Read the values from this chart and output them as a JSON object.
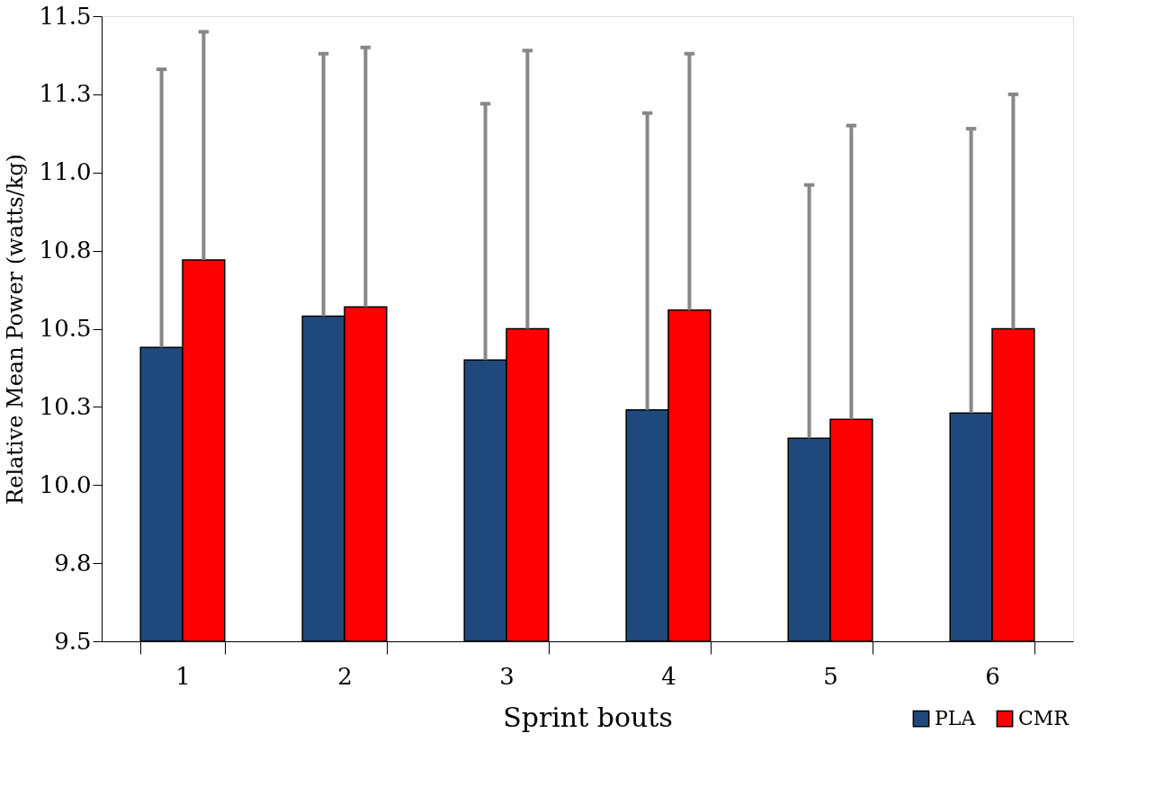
{
  "chart_data": {
    "type": "bar",
    "xlabel": "Sprint bouts",
    "ylabel": "Relative Mean Power (watts/kg)",
    "categories": [
      "1",
      "2",
      "3",
      "4",
      "5",
      "6"
    ],
    "series": [
      {
        "name": "PLA",
        "color": "#1f497d",
        "values": [
          10.44,
          10.54,
          10.4,
          10.24,
          10.15,
          10.23
        ],
        "errors": [
          [
            10.44,
            11.33
          ],
          [
            10.54,
            11.38
          ],
          [
            10.4,
            11.22
          ],
          [
            10.24,
            11.19
          ],
          [
            10.15,
            10.96
          ],
          [
            10.23,
            11.14
          ]
        ]
      },
      {
        "name": "CMR",
        "color": "#ff0000",
        "values": [
          10.72,
          10.57,
          10.5,
          10.56,
          10.21,
          10.5
        ],
        "errors": [
          [
            10.72,
            11.45
          ],
          [
            10.57,
            11.4
          ],
          [
            10.5,
            11.39
          ],
          [
            10.56,
            11.38
          ],
          [
            10.21,
            11.15
          ],
          [
            10.5,
            11.25
          ]
        ]
      }
    ],
    "ylim": [
      9.5,
      11.5
    ],
    "yticks": [
      9.5,
      {
        "value": 9.75,
        "label": "9.8"
      },
      {
        "value": 10,
        "label": "10.0"
      },
      {
        "value": 10.25,
        "label": "10.3"
      },
      10.5,
      {
        "value": 10.75,
        "label": "10.8"
      },
      {
        "value": 11,
        "label": "11.0"
      },
      {
        "value": 11.25,
        "label": "11.3"
      },
      11.5
    ],
    "grid": false,
    "legend": "bottom right"
  }
}
